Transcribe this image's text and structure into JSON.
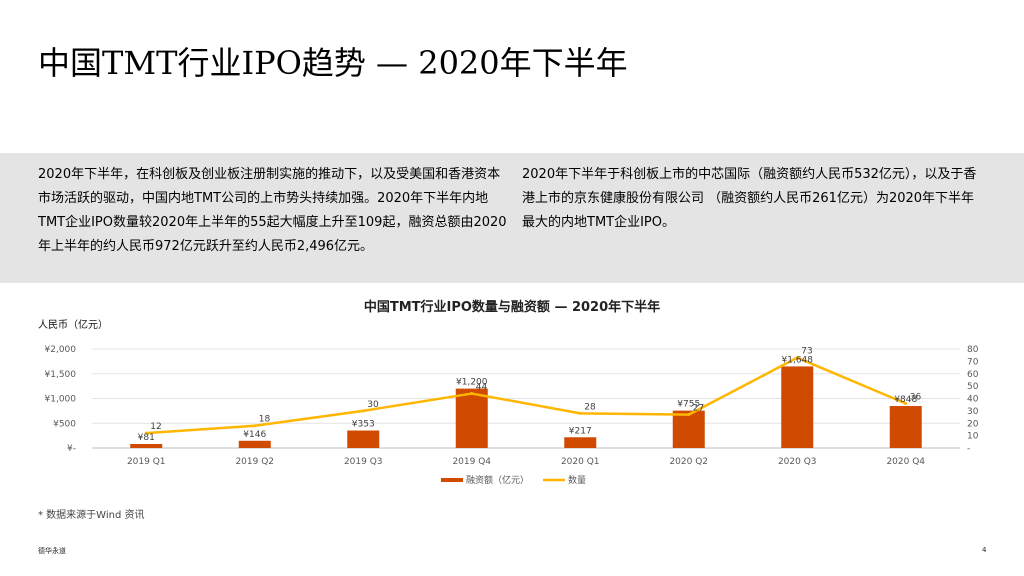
{
  "page": {
    "title": "中国TMT行业IPO趋势 — 2020年下半年",
    "summary_left": "2020年下半年，在科创板及创业板注册制实施的推动下，以及受美国和香港资本市场活跃的驱动，中国内地TMT公司的上市势头持续加强。2020年下半年内地TMT企业IPO数量较2020年上半年的55起大幅度上升至109起，融资总额由2020年上半年的约人民币972亿元跃升至约人民币2,496亿元。",
    "summary_right_1": "2020年下半年于科创板上市的中芯国际（融资额约人民币532亿元），以及于香港上市的京东健康股份有限公司 （融资额约人民币261亿元）为2020年下半年最大的内地TMT企业IPO。",
    "footnote": "* 数据来源于Wind 资讯",
    "brand": "德华永道",
    "page_number": "4"
  },
  "chart_data": {
    "type": "bar",
    "title": "中国TMT行业IPO数量与融资额 — 2020年下半年",
    "ylabel": "人民币（亿元）",
    "categories": [
      "2019 Q1",
      "2019 Q2",
      "2019 Q3",
      "2019 Q4",
      "2020 Q1",
      "2020 Q2",
      "2020 Q3",
      "2020 Q4"
    ],
    "ylim": [
      0,
      2000
    ],
    "y2lim": [
      0,
      80
    ],
    "y_ticks": [
      "¥-",
      "¥500",
      "¥1,000",
      "¥1,500",
      "¥2,000"
    ],
    "y2_ticks": [
      "-",
      "10",
      "20",
      "30",
      "40",
      "50",
      "60",
      "70",
      "80"
    ],
    "series": [
      {
        "name": "融资额（亿元）",
        "type": "bar",
        "color": "#d04a02",
        "values": [
          81,
          146,
          353,
          1200,
          217,
          755,
          1648,
          848
        ],
        "labels": [
          "¥81",
          "¥146",
          "¥353",
          "¥1,200",
          "¥217",
          "¥755",
          "¥1,648",
          "¥848"
        ]
      },
      {
        "name": "数量",
        "type": "line",
        "axis": "right",
        "color": "#ffb600",
        "values": [
          12,
          18,
          30,
          44,
          28,
          27,
          73,
          36
        ],
        "labels": [
          "12",
          "18",
          "30",
          "44",
          "28",
          "27",
          "73",
          "36"
        ]
      }
    ],
    "grid": true,
    "legend": "bottom"
  }
}
